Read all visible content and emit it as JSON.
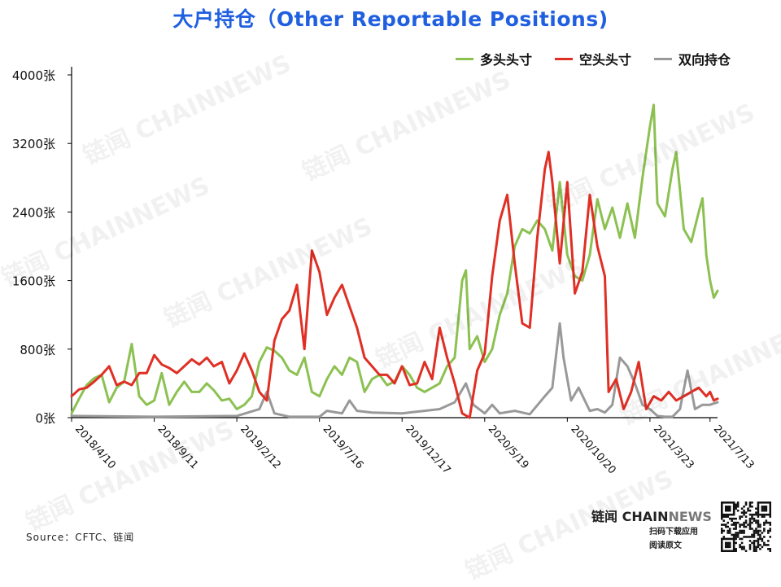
{
  "title": "大户持仓（Other Reportable Positions)",
  "source": "Source：CFTC、链闻",
  "brand": {
    "name": "链闻",
    "latin_a": "CHAIN",
    "latin_b": "NEWS",
    "tagline1": "扫码下载应用",
    "tagline2": "阅读原文"
  },
  "watermark": "链闻 CHAINNEWS",
  "colors": {
    "long": "#8cc152",
    "short": "#e02f24",
    "spread": "#999999"
  },
  "chart_data": {
    "type": "line",
    "title": "大户持仓（Other Reportable Positions)",
    "ylim": [
      0,
      4000
    ],
    "yticks": [
      "0张",
      "800张",
      "1600张",
      "2400张",
      "3200张",
      "4000张"
    ],
    "xlim": [
      "2018-04-10",
      "2021-07-27"
    ],
    "xticks": [
      {
        "label": "2018/4/10",
        "date": "2018-04-10"
      },
      {
        "label": "2018/9/11",
        "date": "2018-09-11"
      },
      {
        "label": "2019/2/12",
        "date": "2019-02-12"
      },
      {
        "label": "2019/7/16",
        "date": "2019-07-16"
      },
      {
        "label": "2019/12/17",
        "date": "2019-12-17"
      },
      {
        "label": "2020/5/19",
        "date": "2020-05-19"
      },
      {
        "label": "2020/10/20",
        "date": "2020-10-20"
      },
      {
        "label": "2021/3/23",
        "date": "2021-03-23"
      },
      {
        "label": "2021/7/13",
        "date": "2021-07-13"
      }
    ],
    "grid": false,
    "legend_position": "top-right",
    "series": [
      {
        "name": "多头头寸",
        "color": "#8cc152",
        "points": [
          [
            "2018-04-10",
            50
          ],
          [
            "2018-04-24",
            220
          ],
          [
            "2018-05-08",
            380
          ],
          [
            "2018-05-22",
            460
          ],
          [
            "2018-06-05",
            500
          ],
          [
            "2018-06-19",
            180
          ],
          [
            "2018-07-03",
            350
          ],
          [
            "2018-07-17",
            420
          ],
          [
            "2018-07-31",
            860
          ],
          [
            "2018-08-14",
            250
          ],
          [
            "2018-08-28",
            150
          ],
          [
            "2018-09-11",
            200
          ],
          [
            "2018-09-25",
            520
          ],
          [
            "2018-10-09",
            150
          ],
          [
            "2018-10-23",
            300
          ],
          [
            "2018-11-06",
            420
          ],
          [
            "2018-11-20",
            300
          ],
          [
            "2018-12-04",
            300
          ],
          [
            "2018-12-18",
            400
          ],
          [
            "2018-12-31",
            320
          ],
          [
            "2019-01-15",
            200
          ],
          [
            "2019-01-29",
            220
          ],
          [
            "2019-02-12",
            100
          ],
          [
            "2019-02-26",
            150
          ],
          [
            "2019-03-12",
            250
          ],
          [
            "2019-03-26",
            650
          ],
          [
            "2019-04-09",
            820
          ],
          [
            "2019-04-23",
            780
          ],
          [
            "2019-05-07",
            700
          ],
          [
            "2019-05-21",
            550
          ],
          [
            "2019-06-04",
            500
          ],
          [
            "2019-06-18",
            700
          ],
          [
            "2019-07-02",
            300
          ],
          [
            "2019-07-16",
            250
          ],
          [
            "2019-07-30",
            450
          ],
          [
            "2019-08-13",
            600
          ],
          [
            "2019-08-27",
            500
          ],
          [
            "2019-09-10",
            700
          ],
          [
            "2019-09-24",
            650
          ],
          [
            "2019-10-08",
            300
          ],
          [
            "2019-10-22",
            450
          ],
          [
            "2019-11-05",
            500
          ],
          [
            "2019-11-19",
            380
          ],
          [
            "2019-12-03",
            420
          ],
          [
            "2019-12-17",
            600
          ],
          [
            "2019-12-31",
            500
          ],
          [
            "2020-01-14",
            350
          ],
          [
            "2020-01-28",
            300
          ],
          [
            "2020-02-11",
            350
          ],
          [
            "2020-02-25",
            400
          ],
          [
            "2020-03-10",
            600
          ],
          [
            "2020-03-24",
            700
          ],
          [
            "2020-04-07",
            1600
          ],
          [
            "2020-04-14",
            1720
          ],
          [
            "2020-04-21",
            800
          ],
          [
            "2020-05-05",
            950
          ],
          [
            "2020-05-19",
            650
          ],
          [
            "2020-06-02",
            800
          ],
          [
            "2020-06-16",
            1200
          ],
          [
            "2020-06-30",
            1450
          ],
          [
            "2020-07-14",
            2000
          ],
          [
            "2020-07-28",
            2200
          ],
          [
            "2020-08-11",
            2150
          ],
          [
            "2020-08-25",
            2300
          ],
          [
            "2020-09-08",
            2200
          ],
          [
            "2020-09-22",
            1950
          ],
          [
            "2020-10-06",
            2750
          ],
          [
            "2020-10-20",
            1900
          ],
          [
            "2020-11-03",
            1650
          ],
          [
            "2020-11-17",
            1600
          ],
          [
            "2020-12-01",
            1900
          ],
          [
            "2020-12-15",
            2550
          ],
          [
            "2020-12-29",
            2200
          ],
          [
            "2021-01-12",
            2450
          ],
          [
            "2021-01-26",
            2100
          ],
          [
            "2021-02-09",
            2500
          ],
          [
            "2021-02-23",
            2100
          ],
          [
            "2021-03-09",
            2800
          ],
          [
            "2021-03-23",
            3400
          ],
          [
            "2021-03-30",
            3650
          ],
          [
            "2021-04-06",
            2500
          ],
          [
            "2021-04-20",
            2350
          ],
          [
            "2021-05-04",
            2900
          ],
          [
            "2021-05-11",
            3100
          ],
          [
            "2021-05-25",
            2200
          ],
          [
            "2021-06-08",
            2050
          ],
          [
            "2021-06-22",
            2400
          ],
          [
            "2021-06-29",
            2560
          ],
          [
            "2021-07-06",
            1900
          ],
          [
            "2021-07-13",
            1600
          ],
          [
            "2021-07-20",
            1400
          ],
          [
            "2021-07-27",
            1480
          ]
        ]
      },
      {
        "name": "空头头寸",
        "color": "#e02f24",
        "points": [
          [
            "2018-04-10",
            250
          ],
          [
            "2018-04-24",
            330
          ],
          [
            "2018-05-08",
            350
          ],
          [
            "2018-05-22",
            420
          ],
          [
            "2018-06-05",
            500
          ],
          [
            "2018-06-19",
            600
          ],
          [
            "2018-07-03",
            380
          ],
          [
            "2018-07-17",
            420
          ],
          [
            "2018-07-31",
            380
          ],
          [
            "2018-08-14",
            520
          ],
          [
            "2018-08-28",
            520
          ],
          [
            "2018-09-11",
            730
          ],
          [
            "2018-09-25",
            620
          ],
          [
            "2018-10-09",
            580
          ],
          [
            "2018-10-23",
            520
          ],
          [
            "2018-11-06",
            600
          ],
          [
            "2018-11-20",
            680
          ],
          [
            "2018-12-04",
            620
          ],
          [
            "2018-12-18",
            700
          ],
          [
            "2018-12-31",
            600
          ],
          [
            "2019-01-15",
            650
          ],
          [
            "2019-01-29",
            400
          ],
          [
            "2019-02-12",
            550
          ],
          [
            "2019-02-26",
            750
          ],
          [
            "2019-03-12",
            550
          ],
          [
            "2019-03-26",
            300
          ],
          [
            "2019-04-09",
            200
          ],
          [
            "2019-04-23",
            900
          ],
          [
            "2019-05-07",
            1150
          ],
          [
            "2019-05-21",
            1250
          ],
          [
            "2019-06-04",
            1550
          ],
          [
            "2019-06-18",
            800
          ],
          [
            "2019-07-02",
            1950
          ],
          [
            "2019-07-16",
            1700
          ],
          [
            "2019-07-30",
            1200
          ],
          [
            "2019-08-13",
            1400
          ],
          [
            "2019-08-27",
            1550
          ],
          [
            "2019-09-10",
            1300
          ],
          [
            "2019-09-24",
            1050
          ],
          [
            "2019-10-08",
            700
          ],
          [
            "2019-10-22",
            600
          ],
          [
            "2019-11-05",
            500
          ],
          [
            "2019-11-19",
            500
          ],
          [
            "2019-12-03",
            400
          ],
          [
            "2019-12-17",
            600
          ],
          [
            "2019-12-31",
            380
          ],
          [
            "2020-01-14",
            400
          ],
          [
            "2020-01-28",
            650
          ],
          [
            "2020-02-11",
            450
          ],
          [
            "2020-02-25",
            1050
          ],
          [
            "2020-03-10",
            700
          ],
          [
            "2020-03-24",
            400
          ],
          [
            "2020-04-07",
            50
          ],
          [
            "2020-04-21",
            0
          ],
          [
            "2020-05-05",
            550
          ],
          [
            "2020-05-19",
            750
          ],
          [
            "2020-06-02",
            1650
          ],
          [
            "2020-06-16",
            2300
          ],
          [
            "2020-06-30",
            2600
          ],
          [
            "2020-07-14",
            1800
          ],
          [
            "2020-07-28",
            1100
          ],
          [
            "2020-08-11",
            1050
          ],
          [
            "2020-08-25",
            2100
          ],
          [
            "2020-09-08",
            2900
          ],
          [
            "2020-09-15",
            3100
          ],
          [
            "2020-09-22",
            2750
          ],
          [
            "2020-10-06",
            1800
          ],
          [
            "2020-10-20",
            2750
          ],
          [
            "2020-11-03",
            1450
          ],
          [
            "2020-11-17",
            1700
          ],
          [
            "2020-12-01",
            2600
          ],
          [
            "2020-12-15",
            2000
          ],
          [
            "2020-12-29",
            1650
          ],
          [
            "2021-01-05",
            300
          ],
          [
            "2021-01-19",
            450
          ],
          [
            "2021-02-02",
            100
          ],
          [
            "2021-02-16",
            300
          ],
          [
            "2021-03-02",
            650
          ],
          [
            "2021-03-16",
            100
          ],
          [
            "2021-03-30",
            250
          ],
          [
            "2021-04-13",
            200
          ],
          [
            "2021-04-27",
            300
          ],
          [
            "2021-05-11",
            200
          ],
          [
            "2021-05-25",
            250
          ],
          [
            "2021-06-08",
            300
          ],
          [
            "2021-06-22",
            350
          ],
          [
            "2021-07-06",
            250
          ],
          [
            "2021-07-13",
            300
          ],
          [
            "2021-07-20",
            200
          ],
          [
            "2021-07-27",
            220
          ]
        ]
      },
      {
        "name": "双向持仓",
        "color": "#999999",
        "points": [
          [
            "2018-04-10",
            20
          ],
          [
            "2018-09-11",
            10
          ],
          [
            "2019-02-12",
            20
          ],
          [
            "2019-03-26",
            100
          ],
          [
            "2019-04-09",
            300
          ],
          [
            "2019-04-23",
            50
          ],
          [
            "2019-05-21",
            10
          ],
          [
            "2019-07-16",
            10
          ],
          [
            "2019-07-30",
            80
          ],
          [
            "2019-08-27",
            50
          ],
          [
            "2019-09-10",
            200
          ],
          [
            "2019-09-24",
            80
          ],
          [
            "2019-10-22",
            60
          ],
          [
            "2019-12-17",
            50
          ],
          [
            "2020-01-28",
            80
          ],
          [
            "2020-02-25",
            100
          ],
          [
            "2020-03-24",
            180
          ],
          [
            "2020-04-14",
            400
          ],
          [
            "2020-04-28",
            150
          ],
          [
            "2020-05-19",
            50
          ],
          [
            "2020-06-02",
            150
          ],
          [
            "2020-06-16",
            50
          ],
          [
            "2020-07-14",
            80
          ],
          [
            "2020-08-11",
            40
          ],
          [
            "2020-09-08",
            250
          ],
          [
            "2020-09-22",
            350
          ],
          [
            "2020-10-06",
            1100
          ],
          [
            "2020-10-13",
            700
          ],
          [
            "2020-10-27",
            200
          ],
          [
            "2020-11-10",
            350
          ],
          [
            "2020-12-01",
            80
          ],
          [
            "2020-12-15",
            100
          ],
          [
            "2020-12-29",
            60
          ],
          [
            "2021-01-12",
            150
          ],
          [
            "2021-01-26",
            700
          ],
          [
            "2021-02-09",
            600
          ],
          [
            "2021-02-23",
            400
          ],
          [
            "2021-03-09",
            150
          ],
          [
            "2021-03-23",
            100
          ],
          [
            "2021-04-06",
            20
          ],
          [
            "2021-04-20",
            10
          ],
          [
            "2021-05-04",
            10
          ],
          [
            "2021-05-18",
            100
          ],
          [
            "2021-06-01",
            550
          ],
          [
            "2021-06-15",
            100
          ],
          [
            "2021-06-29",
            150
          ],
          [
            "2021-07-13",
            150
          ],
          [
            "2021-07-27",
            180
          ]
        ]
      }
    ]
  }
}
